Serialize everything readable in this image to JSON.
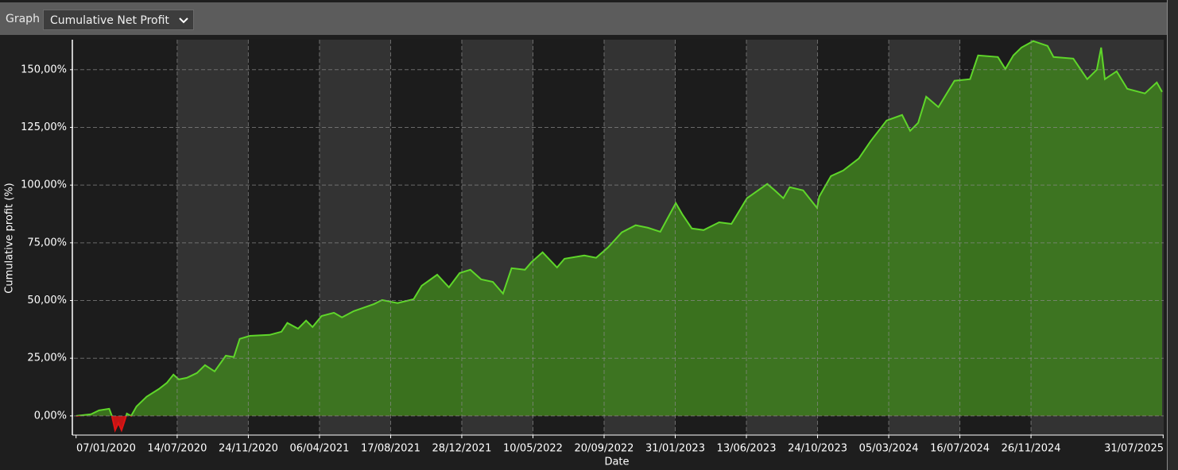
{
  "header": {
    "label": "Graph",
    "dropdown": "Cumulative Net Profit"
  },
  "chart_data": {
    "type": "area",
    "x_label": "Date",
    "y_label": "Cumulative profit (%)",
    "x": [
      "07/01/2020",
      "04/02/2020",
      "19/02/2020",
      "09/03/2020",
      "14/03/2020",
      "20/03/2020",
      "26/03/2020",
      "01/04/2020",
      "07/04/2020",
      "11/04/2020",
      "19/04/2020",
      "29/04/2020",
      "18/05/2020",
      "10/06/2020",
      "25/06/2020",
      "07/07/2020",
      "17/07/2020",
      "01/08/2020",
      "20/08/2020",
      "04/09/2020",
      "22/09/2020",
      "13/10/2020",
      "28/10/2020",
      "08/11/2020",
      "27/11/2020",
      "03/01/2021",
      "25/01/2021",
      "05/02/2021",
      "25/02/2021",
      "12/03/2021",
      "24/03/2021",
      "10/04/2021",
      "03/05/2021",
      "18/05/2021",
      "09/06/2021",
      "17/07/2021",
      "01/08/2021",
      "30/08/2021",
      "29/09/2021",
      "14/10/2021",
      "12/11/2021",
      "04/12/2021",
      "24/12/2021",
      "13/01/2022",
      "02/02/2022",
      "24/02/2022",
      "15/03/2022",
      "31/03/2022",
      "25/04/2022",
      "07/05/2022",
      "28/05/2022",
      "24/06/2022",
      "08/07/2022",
      "14/08/2022",
      "05/09/2022",
      "27/09/2022",
      "23/10/2022",
      "18/11/2022",
      "11/12/2022",
      "03/01/2023",
      "01/02/2023",
      "13/02/2023",
      "03/03/2023",
      "25/03/2023",
      "23/04/2023",
      "16/05/2023",
      "14/06/2023",
      "22/07/2023",
      "05/08/2023",
      "21/08/2023",
      "02/09/2023",
      "27/09/2023",
      "23/10/2023",
      "27/10/2023",
      "18/11/2023",
      "11/12/2023",
      "09/01/2024",
      "31/01/2024",
      "01/03/2024",
      "30/03/2024",
      "14/04/2024",
      "29/04/2024",
      "14/05/2024",
      "06/06/2024",
      "06/07/2024",
      "04/08/2024",
      "19/08/2024",
      "25/09/2024",
      "09/10/2024",
      "24/10/2024",
      "08/11/2024",
      "30/11/2024",
      "27/12/2024",
      "07/01/2025",
      "13/02/2025",
      "11/03/2025",
      "29/03/2025",
      "06/04/2025",
      "13/04/2025",
      "05/05/2025",
      "25/05/2025",
      "27/06/2025",
      "19/07/2025",
      "29/07/2025"
    ],
    "values": [
      0,
      0.7,
      2.4,
      3.1,
      0,
      -6.2,
      -3.1,
      -6.2,
      -2,
      1,
      0,
      4.1,
      8.3,
      11.7,
      14.4,
      17.9,
      15.8,
      16.5,
      18.6,
      22,
      19.3,
      26.1,
      25.5,
      33.4,
      34.7,
      35.1,
      36.5,
      40.3,
      37.8,
      41.3,
      38.5,
      43.3,
      44.7,
      42.7,
      45.4,
      48.5,
      50.2,
      48.9,
      50.6,
      56.4,
      61.2,
      55.7,
      61.9,
      63.3,
      59.2,
      58.1,
      53,
      64,
      63.3,
      66.6,
      70.9,
      64.3,
      68.1,
      69.5,
      68.5,
      72.9,
      79.5,
      82.6,
      81.5,
      79.8,
      92.2,
      87.4,
      81.2,
      80.5,
      83.9,
      83.2,
      94.3,
      100.5,
      97.7,
      94.3,
      99.1,
      97.7,
      90.1,
      95,
      103.9,
      106.3,
      111.5,
      119,
      128,
      130.4,
      123.5,
      127,
      138.3,
      133.8,
      145.2,
      145.9,
      156.2,
      155.5,
      150.3,
      156.2,
      159.6,
      162.4,
      160.3,
      155.5,
      154.8,
      145.9,
      150,
      159.6,
      145.9,
      149.3,
      141.7,
      139.7,
      144.5,
      140.4
    ],
    "color": "#5fd62a",
    "fill_color": "#3f801f",
    "negative_color": "#e01414",
    "xlim": [
      "03/01/2020",
      "01/08/2025"
    ],
    "xticks": [
      "07/01/2020",
      "14/07/2020",
      "24/11/2020",
      "06/04/2021",
      "17/08/2021",
      "28/12/2021",
      "10/05/2022",
      "20/09/2022",
      "31/01/2023",
      "13/06/2023",
      "24/10/2023",
      "05/03/2024",
      "16/07/2024",
      "26/11/2024",
      "31/07/2025"
    ],
    "ylim": [
      -8.3,
      163
    ],
    "yticks": [
      {
        "value": 0,
        "label": "0,00%"
      },
      {
        "value": 25,
        "label": "25,00%"
      },
      {
        "value": 50,
        "label": "50,00%"
      },
      {
        "value": 75,
        "label": "75,00%"
      },
      {
        "value": 100,
        "label": "100,00%"
      },
      {
        "value": 125,
        "label": "125,00%"
      },
      {
        "value": 150,
        "label": "150,00%"
      }
    ],
    "grid": true
  }
}
